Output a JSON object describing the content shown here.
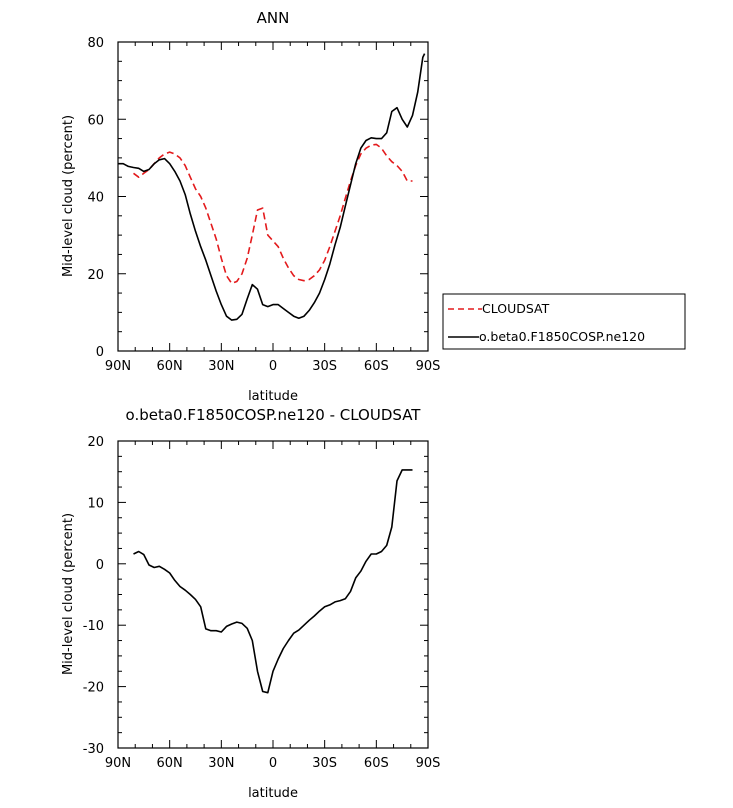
{
  "chart_data": [
    {
      "type": "line",
      "title": "ANN",
      "xlabel": "latitude",
      "ylabel": "Mid-level cloud (percent)",
      "xlim": [
        90,
        -90
      ],
      "ylim": [
        0,
        80
      ],
      "x_ticks": [
        90,
        60,
        30,
        0,
        -30,
        -60,
        -90
      ],
      "x_tick_labels": [
        "90N",
        "60N",
        "30N",
        "0",
        "30S",
        "60S",
        "90S"
      ],
      "y_ticks": [
        0,
        20,
        40,
        60,
        80
      ],
      "y_tick_labels": [
        "0",
        "20",
        "40",
        "60",
        "80"
      ],
      "legend_position": "right",
      "series": [
        {
          "name": "CLOUDSAT",
          "color": "#e31a1c",
          "dash": "dashed",
          "x": [
            81,
            78,
            75,
            72,
            69,
            66,
            63,
            60,
            57,
            54,
            51,
            48,
            45,
            42,
            39,
            36,
            33,
            30,
            27,
            24,
            21,
            18,
            15,
            12,
            9,
            6,
            3,
            0,
            -3,
            -6,
            -9,
            -12,
            -15,
            -18,
            -21,
            -24,
            -27,
            -30,
            -33,
            -36,
            -39,
            -42,
            -45,
            -48,
            -51,
            -54,
            -57,
            -60,
            -63,
            -66,
            -69,
            -72,
            -75,
            -78,
            -81
          ],
          "values": [
            46,
            45,
            46,
            47,
            48.5,
            50,
            51,
            51.5,
            51,
            50,
            48,
            45,
            42,
            40,
            37,
            33,
            29,
            24,
            19.5,
            17.5,
            18,
            20,
            24,
            30,
            36.5,
            37,
            30,
            28.5,
            27,
            24,
            21.5,
            19.5,
            18.5,
            18.2,
            18.5,
            19.5,
            21,
            23.5,
            27,
            31,
            35,
            39.5,
            44,
            48,
            51,
            52.5,
            53.3,
            53.5,
            52.5,
            50.5,
            49,
            48,
            46.5,
            44,
            44
          ]
        },
        {
          "name": "o.beta0.F1850COSP.ne120",
          "color": "#000000",
          "dash": "solid",
          "x": [
            90,
            87,
            84,
            81,
            78,
            75,
            72,
            69,
            66,
            63,
            60,
            57,
            54,
            51,
            48,
            45,
            42,
            39,
            36,
            33,
            30,
            27,
            24,
            21,
            18,
            15,
            12,
            9,
            6,
            3,
            0,
            -3,
            -6,
            -9,
            -12,
            -15,
            -18,
            -21,
            -24,
            -27,
            -30,
            -33,
            -36,
            -39,
            -42,
            -45,
            -48,
            -51,
            -54,
            -57,
            -60,
            -63,
            -66,
            -69,
            -72,
            -75,
            -78,
            -81,
            -84,
            -87,
            -88
          ],
          "values": [
            48.5,
            48.5,
            47.8,
            47.5,
            47.3,
            46.5,
            47,
            48.5,
            49.5,
            49.8,
            48.5,
            46.5,
            44,
            40.5,
            35.5,
            31,
            27,
            23.5,
            19.5,
            15.5,
            12,
            9,
            8,
            8.2,
            9.5,
            13.5,
            17.2,
            16,
            12,
            11.5,
            12,
            12,
            11,
            10,
            9,
            8.5,
            9,
            10.5,
            12.5,
            15,
            18.5,
            22.5,
            27.5,
            32,
            37.5,
            43,
            48.5,
            52.5,
            54.5,
            55.2,
            55,
            55,
            56.5,
            62,
            63,
            60,
            58,
            61,
            67,
            76,
            77
          ]
        }
      ]
    },
    {
      "type": "line",
      "title": "o.beta0.F1850COSP.ne120 - CLOUDSAT",
      "xlabel": "latitude",
      "ylabel": "Mid-level cloud (percent)",
      "xlim": [
        90,
        -90
      ],
      "ylim": [
        -30,
        20
      ],
      "x_ticks": [
        90,
        60,
        30,
        0,
        -30,
        -60,
        -90
      ],
      "x_tick_labels": [
        "90N",
        "60N",
        "30N",
        "0",
        "30S",
        "60S",
        "90S"
      ],
      "y_ticks": [
        -30,
        -20,
        -10,
        0,
        10,
        20
      ],
      "y_tick_labels": [
        "-30",
        "-20",
        "-10",
        "0",
        "10",
        "20"
      ],
      "series": [
        {
          "name": "o.beta0.F1850COSP.ne120 - CLOUDSAT",
          "color": "#000000",
          "dash": "solid",
          "x": [
            81,
            78,
            75,
            72,
            69,
            66,
            63,
            60,
            57,
            54,
            51,
            48,
            45,
            42,
            39,
            36,
            33,
            30,
            27,
            24,
            21,
            18,
            15,
            12,
            9,
            6,
            3,
            0,
            -3,
            -6,
            -9,
            -12,
            -15,
            -18,
            -21,
            -24,
            -27,
            -30,
            -33,
            -36,
            -39,
            -42,
            -45,
            -48,
            -51,
            -54,
            -57,
            -60,
            -63,
            -66,
            -69,
            -72,
            -75,
            -78,
            -81
          ],
          "values": [
            1.6,
            2.0,
            1.5,
            -0.2,
            -0.6,
            -0.4,
            -0.9,
            -1.5,
            -2.7,
            -3.7,
            -4.3,
            -5.0,
            -5.8,
            -7.0,
            -10.6,
            -10.9,
            -10.9,
            -11.1,
            -10.2,
            -9.8,
            -9.5,
            -9.7,
            -10.5,
            -12.5,
            -17.5,
            -20.8,
            -21.0,
            -17.5,
            -15.5,
            -13.8,
            -12.5,
            -11.3,
            -10.8,
            -10.0,
            -9.2,
            -8.5,
            -7.7,
            -7.0,
            -6.7,
            -6.2,
            -6.0,
            -5.7,
            -4.5,
            -2.3,
            -1.2,
            0.4,
            1.6,
            1.6,
            2.0,
            3.0,
            6.0,
            13.5,
            15.3,
            15.3,
            15.3
          ]
        }
      ]
    }
  ]
}
